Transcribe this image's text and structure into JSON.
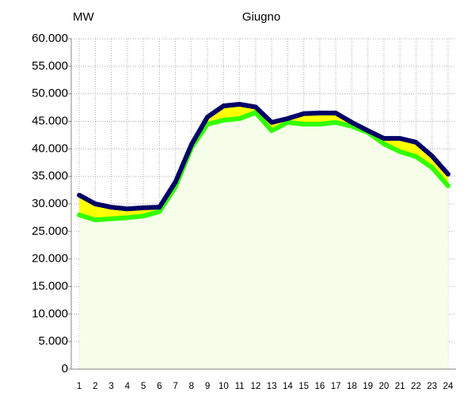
{
  "chart_data": {
    "type": "line",
    "title": "Giugno",
    "y_label": "MW",
    "categories": [
      "1",
      "2",
      "3",
      "4",
      "5",
      "6",
      "7",
      "8",
      "9",
      "10",
      "11",
      "12",
      "13",
      "14",
      "15",
      "16",
      "17",
      "18",
      "19",
      "20",
      "21",
      "22",
      "23",
      "24"
    ],
    "series": [
      {
        "color": "#000066",
        "values": [
          31600,
          30000,
          29400,
          29100,
          29300,
          29400,
          34000,
          40800,
          45800,
          47800,
          48100,
          47600,
          44800,
          45500,
          46400,
          46500,
          46500,
          44800,
          43300,
          41900,
          41900,
          41200,
          38700,
          35400
        ]
      },
      {
        "color": "#33ff00",
        "values": [
          28000,
          27100,
          27300,
          27500,
          27800,
          28600,
          33100,
          40200,
          44500,
          45200,
          45500,
          46600,
          43300,
          44800,
          44500,
          44500,
          44800,
          44100,
          43000,
          40900,
          39500,
          38600,
          36600,
          33300
        ]
      }
    ],
    "ylim": [
      0,
      60000
    ],
    "yticks": [
      0,
      {
        "value": 5000,
        "label": "5.000"
      },
      {
        "value": 10000,
        "label": "10.000"
      },
      {
        "value": 15000,
        "label": "15.000"
      },
      {
        "value": 20000,
        "label": "20.000"
      },
      {
        "value": 25000,
        "label": "25.000"
      },
      {
        "value": 30000,
        "label": "30.000"
      },
      {
        "value": 35000,
        "label": "35.000"
      },
      {
        "value": 40000,
        "label": "40.000"
      },
      {
        "value": 45000,
        "label": "45.000"
      },
      {
        "value": 50000,
        "label": "50.000"
      },
      {
        "value": 55000,
        "label": "55.000"
      },
      {
        "value": 60000,
        "label": "60.000"
      }
    ],
    "grid": true
  }
}
